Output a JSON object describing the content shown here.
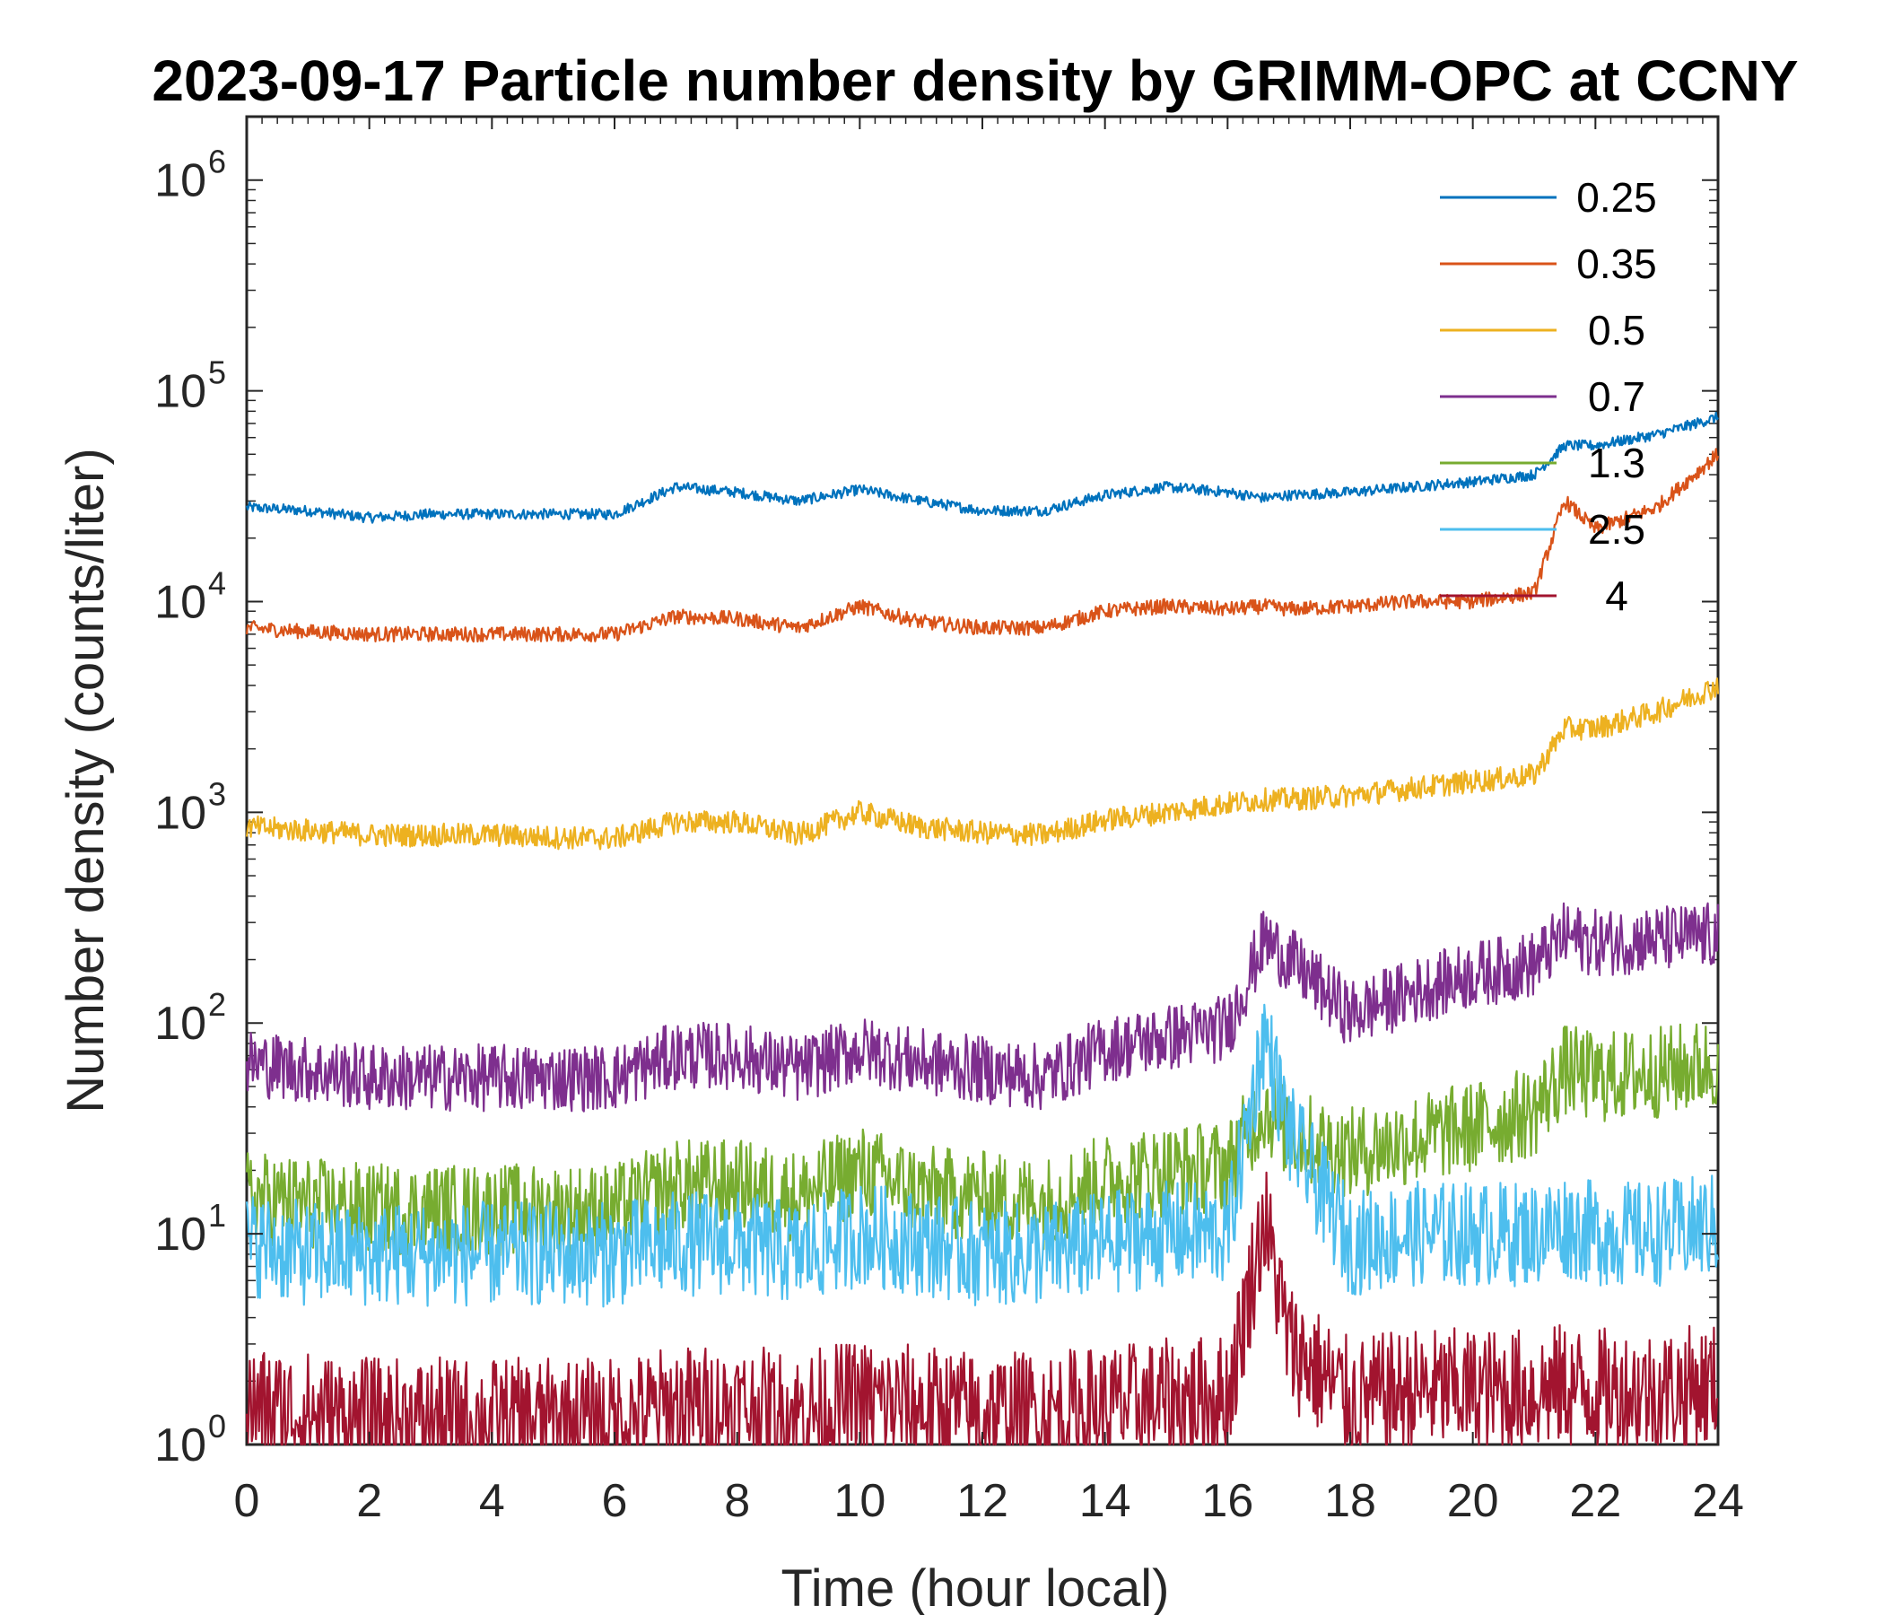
{
  "chart_data": {
    "type": "line",
    "title": "2023-09-17 Particle number density by GRIMM-OPC at CCNY",
    "xlabel": "Time (hour local)",
    "ylabel": "Number density (counts/liter)",
    "xlim": [
      0,
      24
    ],
    "ylim": [
      1,
      2000000
    ],
    "yscale": "log",
    "xticks": [
      "0",
      "2",
      "4",
      "6",
      "8",
      "10",
      "12",
      "14",
      "16",
      "18",
      "20",
      "22",
      "24"
    ],
    "yticks": [
      {
        "base": "10",
        "exp": "0"
      },
      {
        "base": "10",
        "exp": "1"
      },
      {
        "base": "10",
        "exp": "2"
      },
      {
        "base": "10",
        "exp": "3"
      },
      {
        "base": "10",
        "exp": "4"
      },
      {
        "base": "10",
        "exp": "5"
      },
      {
        "base": "10",
        "exp": "6"
      }
    ],
    "legend_position": "top-right",
    "x": [
      0,
      1,
      2,
      3,
      4,
      5,
      6,
      7,
      8,
      9,
      10,
      11,
      12,
      13,
      14,
      15,
      16,
      16.6,
      17,
      18,
      19,
      20,
      21,
      21.5,
      22,
      23,
      24
    ],
    "series": [
      {
        "name": "0.25",
        "color": "#0072BD",
        "values": [
          28000,
          27000,
          25000,
          26000,
          26000,
          26000,
          26000,
          35000,
          33000,
          30000,
          34000,
          30000,
          27000,
          27000,
          32000,
          35000,
          33000,
          31000,
          32000,
          33000,
          35000,
          37000,
          40000,
          55000,
          55000,
          62000,
          75000
        ]
      },
      {
        "name": "0.35",
        "color": "#D95319",
        "values": [
          7500,
          7200,
          7000,
          7000,
          7000,
          7000,
          7000,
          8500,
          8300,
          7500,
          9500,
          8000,
          7500,
          7500,
          9000,
          9500,
          9200,
          9500,
          9200,
          9500,
          10000,
          10000,
          11000,
          30000,
          22000,
          28000,
          50000
        ]
      },
      {
        "name": "0.5",
        "color": "#EDB120",
        "values": [
          850,
          820,
          780,
          780,
          780,
          760,
          750,
          900,
          900,
          780,
          1000,
          850,
          800,
          780,
          920,
          1000,
          1100,
          1150,
          1150,
          1200,
          1300,
          1400,
          1500,
          2500,
          2500,
          3000,
          4000
        ]
      },
      {
        "name": "0.7",
        "color": "#7E2F8E",
        "values": [
          65,
          60,
          55,
          55,
          55,
          55,
          55,
          70,
          70,
          60,
          75,
          65,
          60,
          55,
          75,
          85,
          95,
          250,
          200,
          110,
          140,
          170,
          190,
          260,
          240,
          250,
          260
        ]
      },
      {
        "name": "1.3",
        "color": "#77AC30",
        "values": [
          15,
          14,
          13,
          13,
          13,
          13,
          13,
          17,
          17,
          15,
          20,
          16,
          15,
          14,
          18,
          20,
          21,
          40,
          30,
          24,
          28,
          32,
          38,
          60,
          55,
          58,
          65
        ]
      },
      {
        "name": "2.5",
        "color": "#4DBEEE",
        "values": [
          9,
          8,
          8,
          8,
          8,
          8,
          8,
          9,
          9,
          8,
          10,
          9,
          8,
          8,
          9,
          10,
          10,
          90,
          30,
          9,
          10,
          10,
          10,
          11,
          10,
          10,
          11
        ]
      },
      {
        "name": "4",
        "color": "#A2142F",
        "values": [
          1.5,
          1.4,
          1.3,
          1.3,
          1.3,
          1.3,
          1.3,
          1.5,
          1.5,
          1.4,
          1.6,
          1.5,
          1.4,
          1.4,
          1.5,
          1.6,
          1.7,
          12,
          3,
          1.6,
          1.8,
          1.8,
          1.8,
          1.9,
          1.8,
          1.8,
          1.9
        ]
      }
    ]
  }
}
